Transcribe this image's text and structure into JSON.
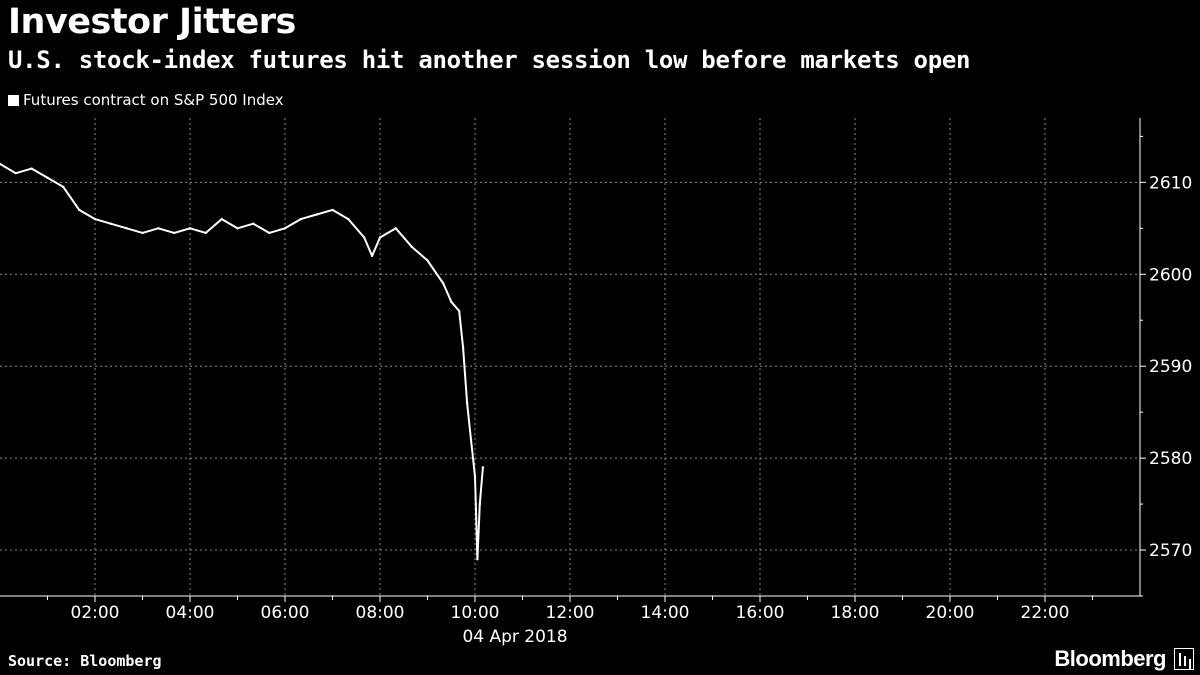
{
  "header": {
    "title": "Investor Jitters",
    "subtitle": "U.S. stock-index futures hit another session low before markets open"
  },
  "footer": {
    "source": "Source: Bloomberg",
    "brand": "Bloomberg"
  },
  "chart_data": {
    "type": "line",
    "title": "Investor Jitters",
    "subtitle": "U.S. stock-index futures hit another session low before markets open",
    "date_label": "04 Apr 2018",
    "series": [
      {
        "name": "Futures contract on S&P 500 Index",
        "color": "#ffffff",
        "x": [
          "00:00",
          "00:20",
          "00:40",
          "01:00",
          "01:20",
          "01:40",
          "02:00",
          "02:20",
          "02:40",
          "03:00",
          "03:20",
          "03:40",
          "04:00",
          "04:20",
          "04:40",
          "05:00",
          "05:20",
          "05:40",
          "06:00",
          "06:20",
          "06:40",
          "07:00",
          "07:20",
          "07:40",
          "07:50",
          "08:00",
          "08:20",
          "08:40",
          "09:00",
          "09:20",
          "09:30",
          "09:40",
          "09:45",
          "09:50",
          "09:55",
          "10:00",
          "10:03",
          "10:06",
          "10:10"
        ],
        "values": [
          2612,
          2611,
          2611.5,
          2610.5,
          2609.5,
          2607,
          2606,
          2605.5,
          2605,
          2604.5,
          2605,
          2604.5,
          2605,
          2604.5,
          2606,
          2605,
          2605.5,
          2604.5,
          2605,
          2606,
          2606.5,
          2607,
          2606,
          2604,
          2602,
          2604,
          2605,
          2603,
          2601.5,
          2599,
          2597,
          2596,
          2592,
          2586,
          2582,
          2578,
          2569,
          2575,
          2579
        ]
      }
    ],
    "xticks": [
      "02:00",
      "04:00",
      "06:00",
      "08:00",
      "10:00",
      "12:00",
      "14:00",
      "16:00",
      "18:00",
      "20:00",
      "22:00"
    ],
    "yticks": [
      2570,
      2580,
      2590,
      2600,
      2610
    ],
    "xlim": [
      "00:00",
      "24:00"
    ],
    "ylim": [
      2565,
      2617
    ],
    "grid": true,
    "legend_position": "top-left"
  }
}
